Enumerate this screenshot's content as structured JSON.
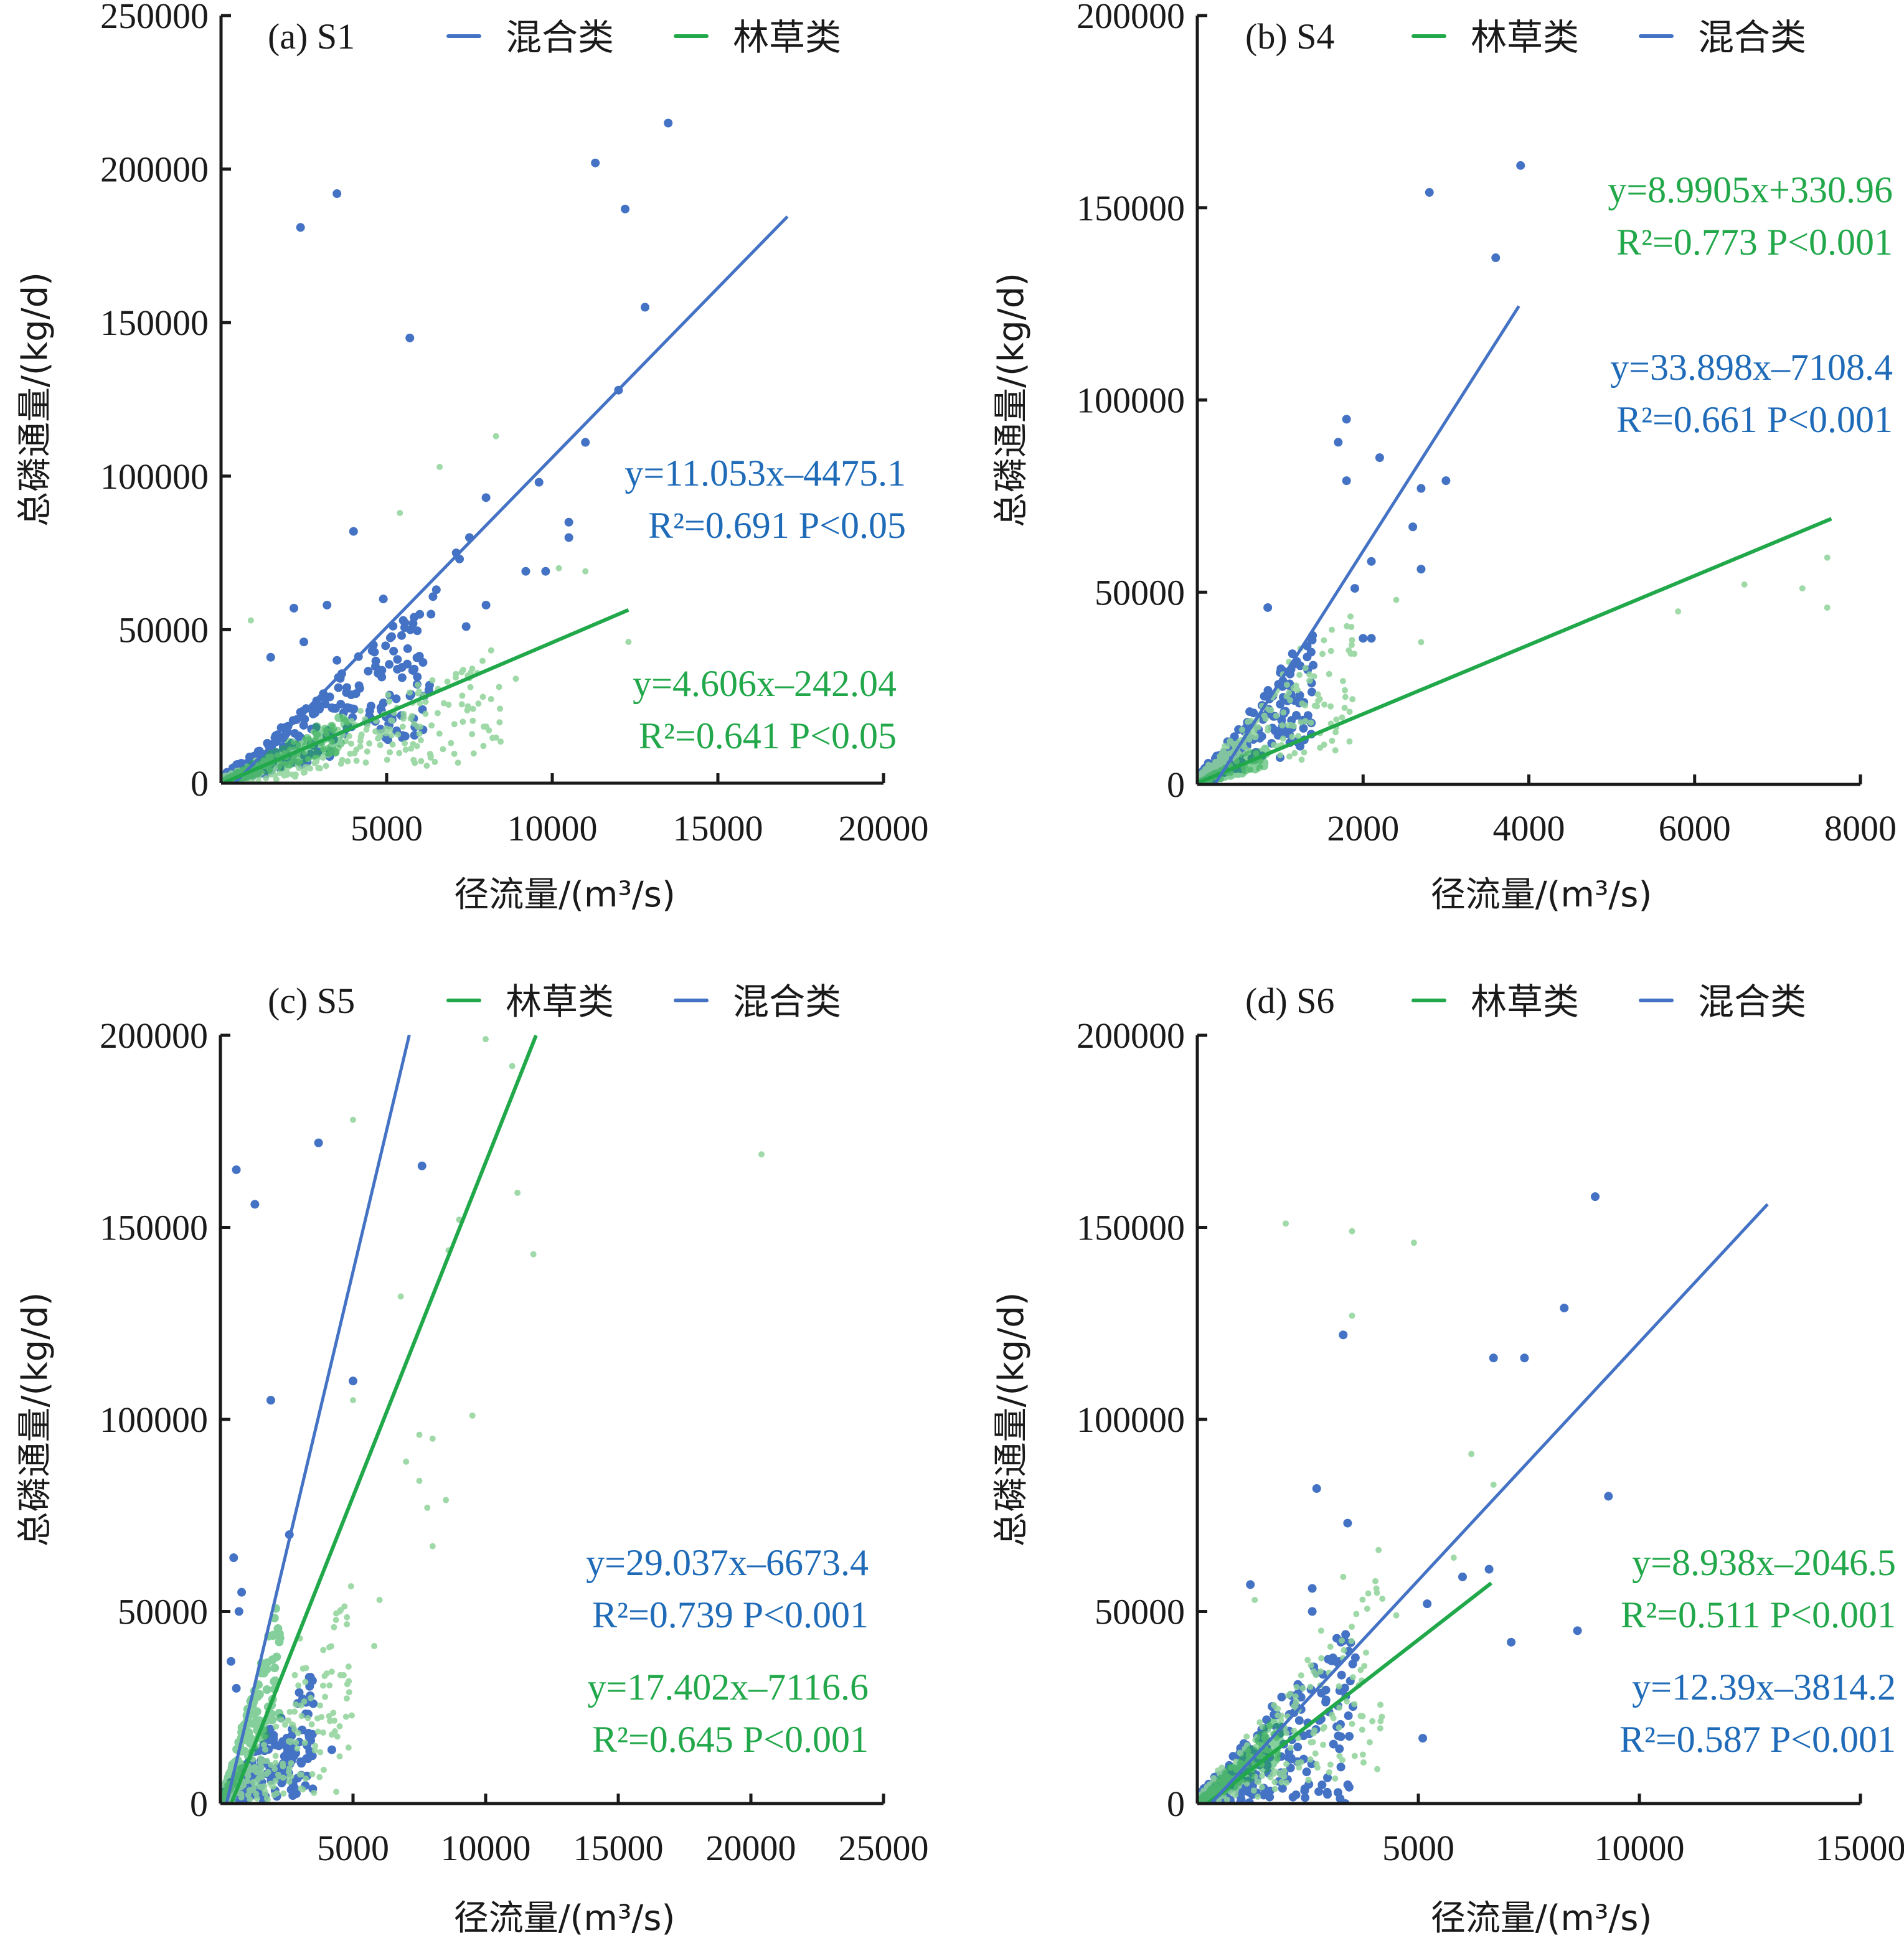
{
  "colors": {
    "mixed_line": "#4472C4",
    "mixed_point": "#4472C4",
    "forest_line": "#21A84A",
    "forest_point": "#8FD39A",
    "mixed_text": "#1F6BB8",
    "forest_text": "#22A84A"
  },
  "chart_data": [
    {
      "type": "scatter",
      "panel_label": "(a) S1",
      "xlabel": "径流量/(m³/s)",
      "ylabel": "总磷通量/(kg/d)",
      "xlim": [
        0,
        20000
      ],
      "ylim": [
        0,
        250000
      ],
      "xticks": [
        5000,
        10000,
        15000,
        20000
      ],
      "xtick_labels": [
        "5000",
        "10000",
        "15000",
        "20000"
      ],
      "yticks": [
        0,
        50000,
        100000,
        150000,
        200000,
        250000
      ],
      "ytick_labels": [
        "0",
        "50000",
        "100000",
        "150000",
        "200000",
        "250000"
      ],
      "legend": [
        {
          "name": "混合类",
          "series": "mixed"
        },
        {
          "name": "林草类",
          "series": "forest"
        }
      ],
      "series": [
        {
          "name": "混合类",
          "key": "mixed",
          "fit": {
            "slope": 11.053,
            "intercept": -4475.1,
            "x_range": [
              400,
              17100
            ]
          },
          "equation": "y=11.053x–4475.1",
          "r2_text": "R²=0.691 P<0.05",
          "outliers": [
            [
              2400,
              181000
            ],
            [
              3500,
              192000
            ],
            [
              5700,
              145000
            ],
            [
              11300,
              202000
            ],
            [
              12200,
              187000
            ],
            [
              13500,
              215000
            ],
            [
              12800,
              155000
            ],
            [
              12000,
              128000
            ],
            [
              11000,
              111000
            ],
            [
              9600,
              98000
            ],
            [
              8000,
              93000
            ],
            [
              4000,
              82000
            ],
            [
              7500,
              80000
            ],
            [
              10500,
              80000
            ],
            [
              10500,
              85000
            ],
            [
              9800,
              69000
            ],
            [
              9200,
              69000
            ],
            [
              2200,
              57000
            ],
            [
              3200,
              58000
            ],
            [
              6500,
              63000
            ],
            [
              7100,
              75000
            ],
            [
              5500,
              53000
            ],
            [
              4900,
              60000
            ],
            [
              7200,
              73000
            ],
            [
              8000,
              58000
            ],
            [
              6000,
              55000
            ],
            [
              7400,
              51000
            ],
            [
              4600,
              45000
            ],
            [
              2500,
              46000
            ],
            [
              3500,
              40000
            ],
            [
              1500,
              41000
            ]
          ],
          "cloud": {
            "x_max": 6500,
            "slope": 6.0,
            "spread": 0.6,
            "count": 380
          }
        },
        {
          "name": "林草类",
          "key": "forest",
          "fit": {
            "slope": 4.606,
            "intercept": -242.04,
            "x_range": [
              100,
              12300
            ]
          },
          "equation": "y=4.606x–242.04",
          "r2_text": "R²=0.641 P<0.05",
          "outliers": [
            [
              8300,
              113000
            ],
            [
              6600,
              103000
            ],
            [
              5400,
              88000
            ],
            [
              10200,
              70000
            ],
            [
              11000,
              69000
            ],
            [
              12300,
              46000
            ],
            [
              900,
              53000
            ],
            [
              8900,
              34000
            ],
            [
              7300,
              20000
            ],
            [
              6000,
              26000
            ]
          ],
          "cloud": {
            "x_max": 8500,
            "slope": 3.2,
            "spread": 0.7,
            "count": 420
          }
        }
      ]
    },
    {
      "type": "scatter",
      "panel_label": "(b) S4",
      "xlabel": "径流量/(m³/s)",
      "ylabel": "总磷通量/(kg/d)",
      "xlim": [
        0,
        8000
      ],
      "ylim": [
        0,
        200000
      ],
      "xticks": [
        2000,
        4000,
        6000,
        8000
      ],
      "xtick_labels": [
        "2000",
        "4000",
        "6000",
        "8000"
      ],
      "yticks": [
        0,
        50000,
        100000,
        150000,
        200000
      ],
      "ytick_labels": [
        "0",
        "50000",
        "100000",
        "150000",
        "200000"
      ],
      "legend": [
        {
          "name": "林草类",
          "series": "forest"
        },
        {
          "name": "混合类",
          "series": "mixed"
        }
      ],
      "series": [
        {
          "name": "林草类",
          "key": "forest",
          "fit": {
            "slope": 8.9905,
            "intercept": 330.96,
            "x_range": [
              0,
              7650
            ]
          },
          "equation": "y=8.9905x+330.96",
          "r2_text": "R²=0.773 P<0.001",
          "outliers": [
            [
              7600,
              59000
            ],
            [
              7600,
              46000
            ],
            [
              7300,
              51000
            ],
            [
              6600,
              52000
            ],
            [
              5800,
              45000
            ],
            [
              2700,
              37000
            ],
            [
              2400,
              48000
            ]
          ],
          "cloud": {
            "x_max": 1900,
            "slope": 16,
            "spread": 0.7,
            "count": 260
          }
        },
        {
          "name": "混合类",
          "key": "mixed",
          "fit": {
            "slope": 33.898,
            "intercept": -7108.4,
            "x_range": [
              210,
              3880
            ]
          },
          "equation": "y=33.898x–7108.4",
          "r2_text": "R²=0.661 P<0.001",
          "outliers": [
            [
              3900,
              161000
            ],
            [
              2800,
              154000
            ],
            [
              3600,
              137000
            ],
            [
              1800,
              95000
            ],
            [
              1700,
              89000
            ],
            [
              2200,
              85000
            ],
            [
              1800,
              79000
            ],
            [
              3000,
              79000
            ],
            [
              2700,
              77000
            ],
            [
              2600,
              67000
            ],
            [
              2700,
              56000
            ],
            [
              2100,
              58000
            ],
            [
              850,
              46000
            ],
            [
              1900,
              51000
            ],
            [
              2000,
              38000
            ],
            [
              2100,
              38000
            ]
          ],
          "cloud": {
            "x_max": 1400,
            "slope": 18,
            "spread": 0.6,
            "count": 240
          }
        }
      ]
    },
    {
      "type": "scatter",
      "panel_label": "(c) S5",
      "xlabel": "径流量/(m³/s)",
      "ylabel": "总磷通量/(kg/d)",
      "xlim": [
        0,
        25000
      ],
      "ylim": [
        0,
        200000
      ],
      "xticks": [
        5000,
        10000,
        15000,
        20000,
        25000
      ],
      "xtick_labels": [
        "5000",
        "10000",
        "15000",
        "20000",
        "25000"
      ],
      "yticks": [
        0,
        50000,
        100000,
        150000,
        200000
      ],
      "ytick_labels": [
        "0",
        "50000",
        "100000",
        "150000",
        "200000"
      ],
      "legend": [
        {
          "name": "林草类",
          "series": "forest"
        },
        {
          "name": "混合类",
          "series": "mixed"
        }
      ],
      "series": [
        {
          "name": "混合类",
          "key": "mixed",
          "fit": {
            "slope": 29.037,
            "intercept": -6673.4,
            "x_range": [
              230,
              7120
            ]
          },
          "equation": "y=29.037x–6673.4",
          "r2_text": "R²=0.739 P<0.001",
          "outliers": [
            [
              600,
              165000
            ],
            [
              1300,
              156000
            ],
            [
              3700,
              172000
            ],
            [
              7600,
              166000
            ],
            [
              1900,
              105000
            ],
            [
              5000,
              110000
            ],
            [
              2600,
              70000
            ],
            [
              500,
              64000
            ],
            [
              800,
              55000
            ],
            [
              700,
              50000
            ],
            [
              400,
              37000
            ],
            [
              600,
              30000
            ],
            [
              3500,
              26000
            ],
            [
              4200,
              14000
            ]
          ],
          "cloud": {
            "x_max": 3500,
            "slope": 5,
            "spread": 0.9,
            "count": 320
          }
        },
        {
          "name": "林草类",
          "key": "forest",
          "fit": {
            "slope": 17.402,
            "intercept": -7116.6,
            "x_range": [
              410,
              11900
            ]
          },
          "equation": "y=17.402x–7116.6",
          "r2_text": "R²=0.645 P<0.001",
          "outliers": [
            [
              10000,
              199000
            ],
            [
              11000,
              192000
            ],
            [
              5000,
              178000
            ],
            [
              20400,
              169000
            ],
            [
              11200,
              159000
            ],
            [
              9000,
              152000
            ],
            [
              8600,
              144000
            ],
            [
              11800,
              143000
            ],
            [
              6800,
              132000
            ],
            [
              5000,
              105000
            ],
            [
              9500,
              101000
            ],
            [
              7500,
              96000
            ],
            [
              8000,
              95000
            ],
            [
              7000,
              89000
            ],
            [
              7500,
              84000
            ],
            [
              7800,
              77000
            ],
            [
              8500,
              79000
            ],
            [
              8000,
              67000
            ],
            [
              6000,
              53000
            ],
            [
              5800,
              41000
            ],
            [
              4500,
              50000
            ],
            [
              3000,
              43000
            ]
          ],
          "cloud": {
            "x_max": 5000,
            "slope": 6,
            "spread": 0.9,
            "count": 300
          }
        }
      ]
    },
    {
      "type": "scatter",
      "panel_label": "(d) S6",
      "xlabel": "径流量/(m³/s)",
      "ylabel": "总磷通量/(kg/d)",
      "xlim": [
        0,
        15000
      ],
      "ylim": [
        0,
        200000
      ],
      "xticks": [
        5000,
        10000,
        15000
      ],
      "xtick_labels": [
        "5000",
        "10000",
        "15000"
      ],
      "yticks": [
        0,
        50000,
        100000,
        150000,
        200000
      ],
      "ytick_labels": [
        "0",
        "50000",
        "100000",
        "150000",
        "200000"
      ],
      "legend": [
        {
          "name": "林草类",
          "series": "forest"
        },
        {
          "name": "混合类",
          "series": "mixed"
        }
      ],
      "series": [
        {
          "name": "林草类",
          "key": "forest",
          "fit": {
            "slope": 8.938,
            "intercept": -2046.5,
            "x_range": [
              230,
              6650
            ]
          },
          "equation": "y=8.938x–2046.5",
          "r2_text": "R²=0.511 P<0.001",
          "outliers": [
            [
              2000,
              151000
            ],
            [
              3500,
              149000
            ],
            [
              4900,
              146000
            ],
            [
              3500,
              127000
            ],
            [
              6200,
              91000
            ],
            [
              6700,
              83000
            ],
            [
              4100,
              66000
            ],
            [
              5800,
              64000
            ],
            [
              3300,
              59000
            ],
            [
              1300,
              53000
            ],
            [
              4500,
              49000
            ],
            [
              2800,
              45000
            ]
          ],
          "cloud": {
            "x_max": 4200,
            "slope": 8,
            "spread": 0.8,
            "count": 320
          }
        },
        {
          "name": "混合类",
          "key": "mixed",
          "fit": {
            "slope": 12.39,
            "intercept": -3814.2,
            "x_range": [
              310,
              12900
            ]
          },
          "equation": "y=12.39x–3814.2",
          "r2_text": "R²=0.587 P<0.001",
          "outliers": [
            [
              9000,
              158000
            ],
            [
              8300,
              129000
            ],
            [
              3300,
              122000
            ],
            [
              6700,
              116000
            ],
            [
              7400,
              116000
            ],
            [
              9300,
              80000
            ],
            [
              2700,
              82000
            ],
            [
              3400,
              73000
            ],
            [
              6600,
              61000
            ],
            [
              6000,
              59000
            ],
            [
              5200,
              52000
            ],
            [
              1200,
              57000
            ],
            [
              2600,
              56000
            ],
            [
              2600,
              50000
            ],
            [
              7100,
              42000
            ],
            [
              8600,
              45000
            ],
            [
              5100,
              17000
            ],
            [
              2700,
              34000
            ]
          ],
          "cloud": {
            "x_max": 3600,
            "slope": 7,
            "spread": 1.0,
            "count": 340
          }
        }
      ]
    }
  ]
}
